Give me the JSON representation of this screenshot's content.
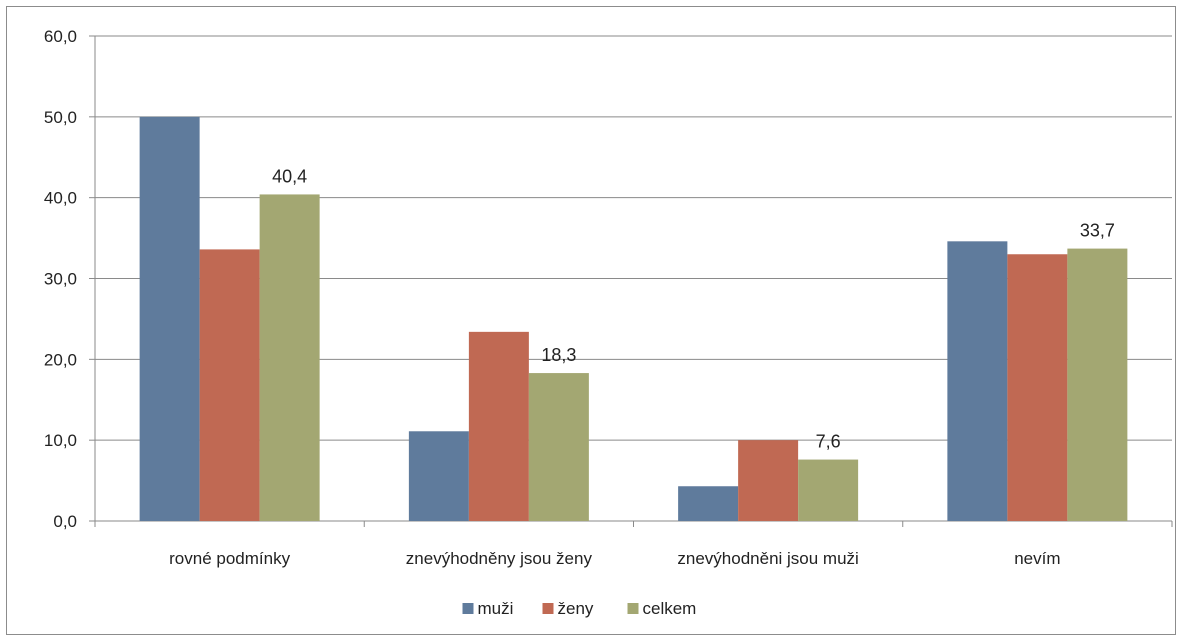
{
  "chart_data": {
    "type": "bar",
    "categories": [
      "rovné podmínky",
      "znevýhodněny jsou ženy",
      "znevýhodněni jsou muži",
      "nevím"
    ],
    "series": [
      {
        "name": "muži",
        "values": [
          50.0,
          11.1,
          4.3,
          34.6
        ],
        "color": "#5f7b9c"
      },
      {
        "name": "ženy",
        "values": [
          33.6,
          23.4,
          10.0,
          33.0
        ],
        "color": "#c06953"
      },
      {
        "name": "celkem",
        "values": [
          40.4,
          18.3,
          7.6,
          33.7
        ],
        "color": "#a3a772"
      }
    ],
    "data_labels": {
      "series": "celkem",
      "values": [
        "40,4",
        "18,3",
        "7,6",
        "33,7"
      ]
    },
    "yticks": [
      "0,0",
      "10,0",
      "20,0",
      "30,0",
      "40,0",
      "50,0",
      "60,0"
    ],
    "ylim": [
      0,
      60
    ],
    "grid": true,
    "legend": "bottom"
  }
}
